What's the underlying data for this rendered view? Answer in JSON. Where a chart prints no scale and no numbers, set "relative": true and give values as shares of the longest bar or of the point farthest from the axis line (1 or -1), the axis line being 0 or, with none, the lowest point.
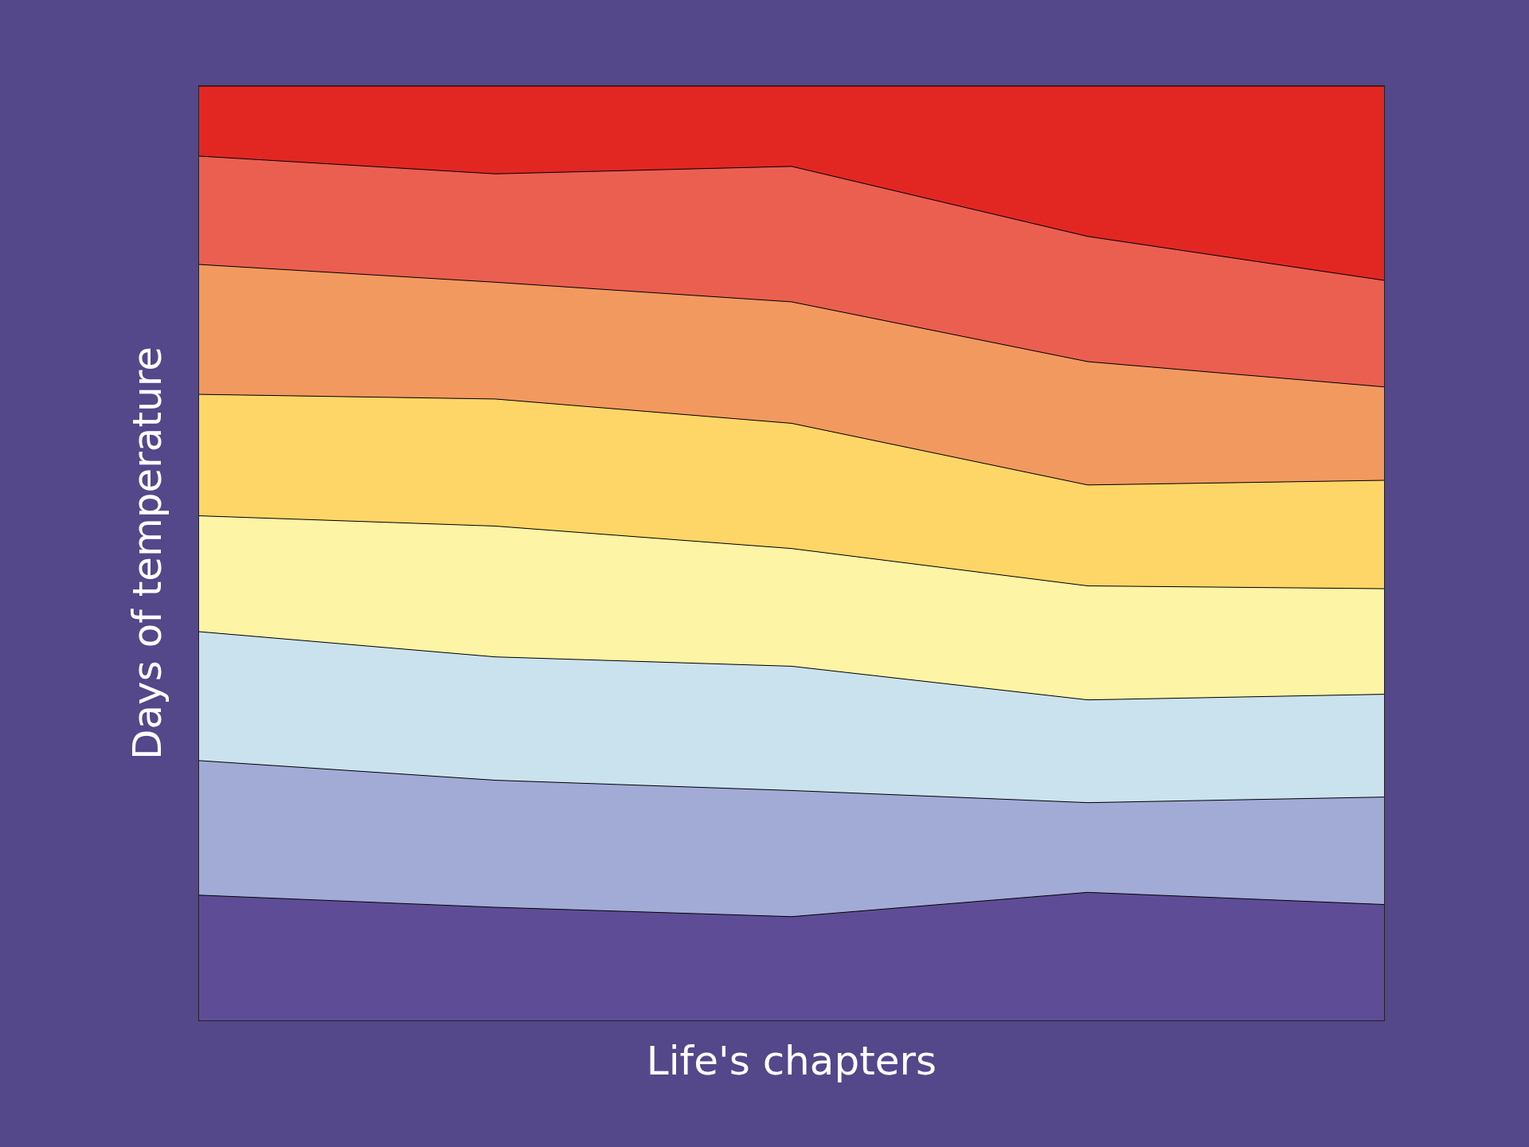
{
  "chart_data": {
    "type": "area",
    "stacked": true,
    "relative": true,
    "xlabel": "Life's chapters",
    "ylabel": "Days of temperature",
    "categories": [
      null,
      null,
      null,
      null,
      null
    ],
    "series": [
      {
        "color": "#5e4d96",
        "values": [
          0.134,
          0.121,
          0.111,
          0.137,
          0.124
        ]
      },
      {
        "color": "#a2aad6",
        "values": [
          0.144,
          0.136,
          0.135,
          0.096,
          0.115
        ]
      },
      {
        "color": "#cae2ed",
        "values": [
          0.138,
          0.132,
          0.133,
          0.11,
          0.11
        ]
      },
      {
        "color": "#fdf4a6",
        "values": [
          0.124,
          0.14,
          0.126,
          0.122,
          0.113
        ]
      },
      {
        "color": "#fed667",
        "values": [
          0.13,
          0.136,
          0.134,
          0.108,
          0.116
        ]
      },
      {
        "color": "#f2995f",
        "values": [
          0.139,
          0.125,
          0.13,
          0.132,
          0.1
        ]
      },
      {
        "color": "#ea5f50",
        "values": [
          0.116,
          0.116,
          0.145,
          0.134,
          0.114
        ]
      },
      {
        "color": "#e22723",
        "values": [
          0.075,
          0.094,
          0.086,
          0.161,
          0.208
        ]
      }
    ]
  }
}
